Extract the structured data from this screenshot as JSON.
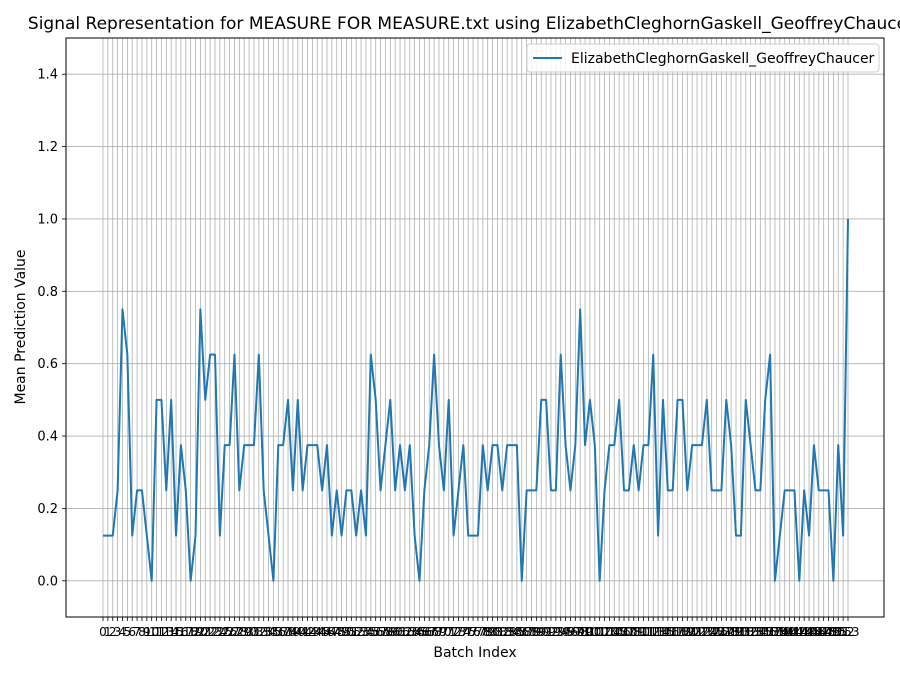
{
  "chart_data": {
    "type": "line",
    "title": "Signal Representation for MEASURE FOR MEASURE.txt using ElizabethCleghornGaskell_GeoffreyChaucer",
    "xlabel": "Batch Index",
    "ylabel": "Mean Prediction Value",
    "ylim": [
      -0.1,
      1.5
    ],
    "yticks": [
      "0.0",
      "0.2",
      "0.4",
      "0.6",
      "0.8",
      "1.0",
      "1.2",
      "1.4"
    ],
    "grid": true,
    "legend_position": "top-right",
    "series": [
      {
        "name": "ElizabethCleghornGaskell_GeoffreyChaucer",
        "color": "#1f77b4",
        "values": [
          0.125,
          0.125,
          0.125,
          0.25,
          0.75,
          0.625,
          0.125,
          0.25,
          0.25,
          0.125,
          0.0,
          0.5,
          0.5,
          0.25,
          0.5,
          0.125,
          0.375,
          0.25,
          0.0,
          0.125,
          0.75,
          0.5,
          0.625,
          0.625,
          0.125,
          0.375,
          0.375,
          0.625,
          0.25,
          0.375,
          0.375,
          0.375,
          0.625,
          0.25,
          0.125,
          0.0,
          0.375,
          0.375,
          0.5,
          0.25,
          0.5,
          0.25,
          0.375,
          0.375,
          0.375,
          0.25,
          0.375,
          0.125,
          0.25,
          0.125,
          0.25,
          0.25,
          0.125,
          0.25,
          0.125,
          0.625,
          0.5,
          0.25,
          0.375,
          0.5,
          0.25,
          0.375,
          0.25,
          0.375,
          0.125,
          0.0,
          0.25,
          0.375,
          0.625,
          0.375,
          0.25,
          0.5,
          0.125,
          0.25,
          0.375,
          0.125,
          0.125,
          0.125,
          0.375,
          0.25,
          0.375,
          0.375,
          0.25,
          0.375,
          0.375,
          0.375,
          0.0,
          0.25,
          0.25,
          0.25,
          0.5,
          0.5,
          0.25,
          0.25,
          0.625,
          0.375,
          0.25,
          0.375,
          0.75,
          0.375,
          0.5,
          0.375,
          0.0,
          0.25,
          0.375,
          0.375,
          0.5,
          0.25,
          0.25,
          0.375,
          0.25,
          0.375,
          0.375,
          0.625,
          0.125,
          0.5,
          0.25,
          0.25,
          0.5,
          0.5,
          0.25,
          0.375,
          0.375,
          0.375,
          0.5,
          0.25,
          0.25,
          0.25,
          0.5,
          0.375,
          0.125,
          0.125,
          0.5,
          0.375,
          0.25,
          0.25,
          0.5,
          0.625,
          0.0,
          0.125,
          0.25,
          0.25,
          0.25,
          0.0,
          0.25,
          0.125,
          0.375,
          0.25,
          0.25,
          0.25,
          0.0,
          0.375,
          0.125,
          1.0
        ]
      }
    ]
  }
}
